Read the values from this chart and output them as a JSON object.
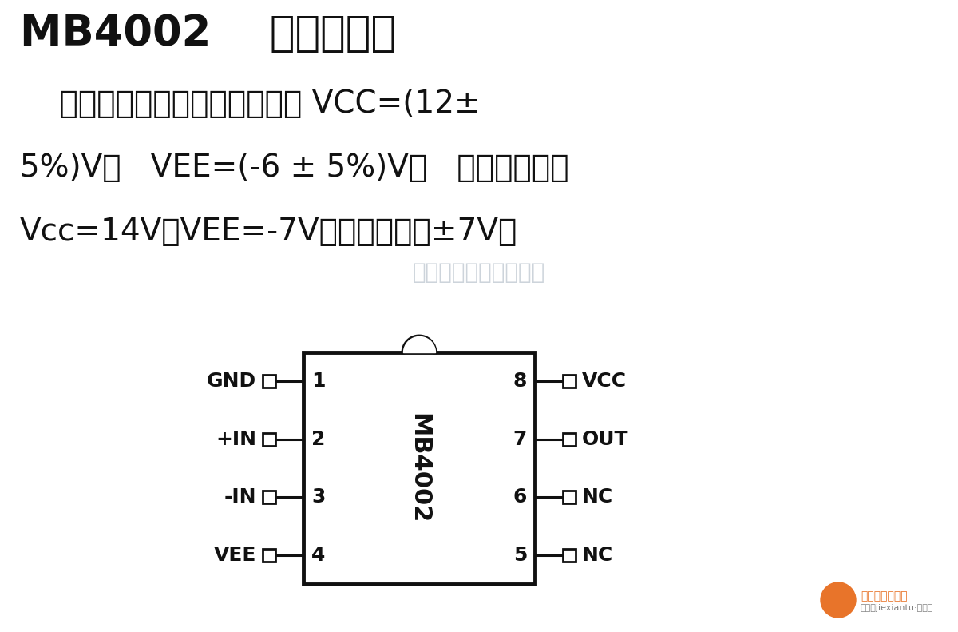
{
  "title_part1": "MB4002    ",
  "title_part2": "电压比较器",
  "description_lines": [
    "    高速型电压比较器；工作电压 VCC=(12±",
    "5%)V，   VEE=(-6 ± 5%)V；   最大工作电压",
    "Vcc=14V；VEE=-7V；输入电压为±7V。"
  ],
  "watermark": "杭州将睿科技有限公司",
  "chip_name": "MB4002",
  "left_pins": [
    {
      "num": "1",
      "name": "GND"
    },
    {
      "num": "2",
      "name": "+IN"
    },
    {
      "num": "3",
      "name": "-IN"
    },
    {
      "num": "4",
      "name": "VEE"
    }
  ],
  "right_pins": [
    {
      "num": "8",
      "name": "VCC"
    },
    {
      "num": "7",
      "name": "OUT"
    },
    {
      "num": "6",
      "name": "NC"
    },
    {
      "num": "5",
      "name": "NC"
    }
  ],
  "bg_color": "#ffffff",
  "text_color": "#111111",
  "chip_color": "#111111",
  "watermark_color": "#c5cdd5"
}
